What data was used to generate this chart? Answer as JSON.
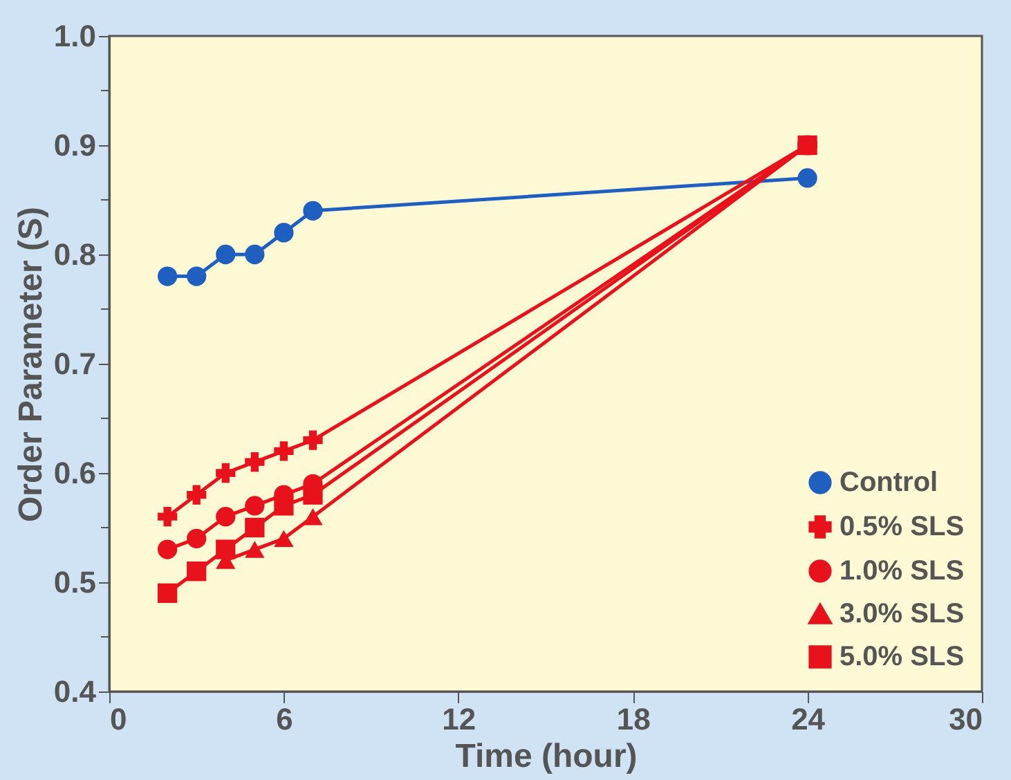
{
  "chart_data": {
    "type": "line",
    "xlabel": "Time (hour)",
    "ylabel": "Order Parameter (S)",
    "x": [
      2,
      3,
      4,
      5,
      6,
      7,
      24
    ],
    "series": [
      {
        "name": "Control",
        "color": "#1f5fbf",
        "marker": "circle",
        "values": [
          0.78,
          0.78,
          0.8,
          0.8,
          0.82,
          0.84,
          0.87
        ]
      },
      {
        "name": "0.5% SLS",
        "color": "#e8121c",
        "marker": "cross",
        "values": [
          0.56,
          0.58,
          0.6,
          0.61,
          0.62,
          0.63,
          0.9
        ]
      },
      {
        "name": "1.0% SLS",
        "color": "#e8121c",
        "marker": "circle",
        "values": [
          0.53,
          0.54,
          0.56,
          0.57,
          0.58,
          0.59,
          0.9
        ]
      },
      {
        "name": "3.0% SLS",
        "color": "#e8121c",
        "marker": "triangle",
        "values": [
          null,
          null,
          0.52,
          0.53,
          0.54,
          0.56,
          0.9
        ]
      },
      {
        "name": "5.0% SLS",
        "color": "#e8121c",
        "marker": "square",
        "values": [
          0.49,
          0.51,
          0.53,
          0.55,
          0.57,
          0.58,
          0.9
        ]
      }
    ],
    "xlim": [
      0,
      30
    ],
    "xticks": [
      0,
      6,
      12,
      18,
      24,
      30
    ],
    "ylim": [
      0.4,
      1.0
    ],
    "yticks": [
      0.4,
      {
        "value": 0.45,
        "label": null
      },
      0.5,
      {
        "value": 0.55,
        "label": null
      },
      0.6,
      {
        "value": 0.65,
        "label": null
      },
      0.7,
      {
        "value": 0.75,
        "label": null
      },
      0.8,
      {
        "value": 0.85,
        "label": null
      },
      0.9,
      {
        "value": 0.95,
        "label": null
      },
      {
        "value": 1.0,
        "label": "1.0"
      }
    ],
    "grid": false,
    "legend": "bottom right",
    "line_style": "solid"
  }
}
